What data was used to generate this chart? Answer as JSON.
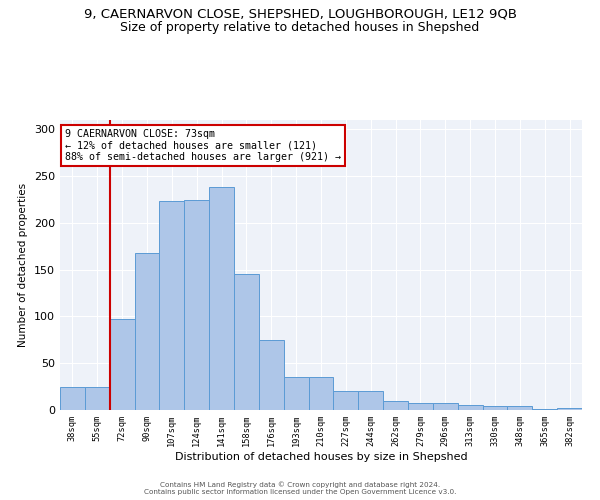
{
  "title": "9, CAERNARVON CLOSE, SHEPSHED, LOUGHBOROUGH, LE12 9QB",
  "subtitle": "Size of property relative to detached houses in Shepshed",
  "xlabel": "Distribution of detached houses by size in Shepshed",
  "ylabel": "Number of detached properties",
  "categories": [
    "38sqm",
    "55sqm",
    "72sqm",
    "90sqm",
    "107sqm",
    "124sqm",
    "141sqm",
    "158sqm",
    "176sqm",
    "193sqm",
    "210sqm",
    "227sqm",
    "244sqm",
    "262sqm",
    "279sqm",
    "296sqm",
    "313sqm",
    "330sqm",
    "348sqm",
    "365sqm",
    "382sqm"
  ],
  "values": [
    25,
    25,
    97,
    168,
    223,
    224,
    238,
    145,
    75,
    35,
    35,
    20,
    20,
    10,
    8,
    8,
    5,
    4,
    4,
    1,
    2
  ],
  "bar_color": "#aec6e8",
  "bar_edge_color": "#5b9bd5",
  "vline_index": 1.5,
  "marker_label": "9 CAERNARVON CLOSE: 73sqm",
  "annotation_line1": "← 12% of detached houses are smaller (121)",
  "annotation_line2": "88% of semi-detached houses are larger (921) →",
  "vline_color": "#cc0000",
  "annotation_box_edge": "#cc0000",
  "footer1": "Contains HM Land Registry data © Crown copyright and database right 2024.",
  "footer2": "Contains public sector information licensed under the Open Government Licence v3.0.",
  "bg_color": "#eef2f9",
  "ylim": [
    0,
    310
  ],
  "title_fontsize": 9.5,
  "subtitle_fontsize": 9
}
